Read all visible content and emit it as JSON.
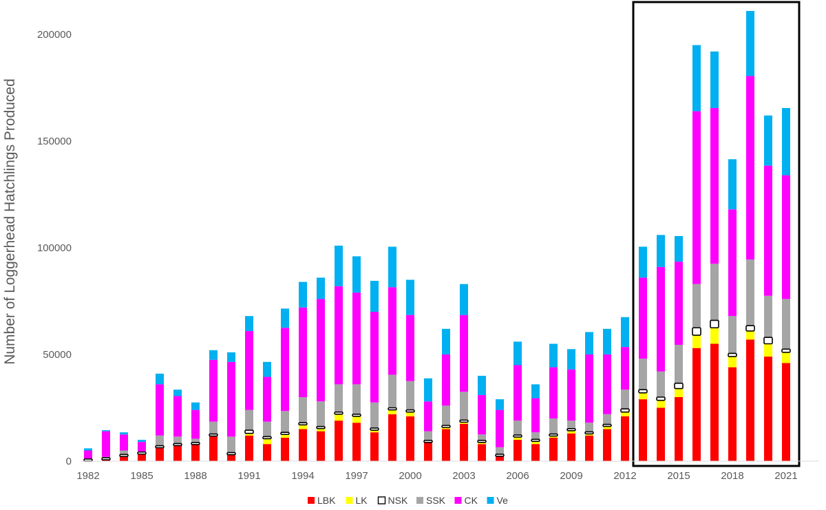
{
  "chart_data": {
    "type": "bar",
    "stacked": true,
    "title": "",
    "xlabel": "",
    "ylabel": "Number of Loggerhead Hatchlings Produced",
    "ylim": [
      0,
      215000
    ],
    "yticks": [
      0,
      50000,
      100000,
      150000,
      200000
    ],
    "ytick_labels": [
      "0",
      "50000",
      "100000",
      "150000",
      "200000"
    ],
    "xticks": [
      "1982",
      "1985",
      "1988",
      "1991",
      "1994",
      "1997",
      "2000",
      "2003",
      "2006",
      "2009",
      "2012",
      "2015",
      "2018",
      "2021"
    ],
    "grid": false,
    "legend_position": "bottom",
    "highlight_box": {
      "from": "2013",
      "to": "2021"
    },
    "categories": [
      "1982",
      "1983",
      "1984",
      "1985",
      "1986",
      "1987",
      "1988",
      "1989",
      "1990",
      "1991",
      "1992",
      "1993",
      "1994",
      "1995",
      "1996",
      "1997",
      "1998",
      "1999",
      "2000",
      "2001",
      "2002",
      "2003",
      "2004",
      "2005",
      "2006",
      "2007",
      "2008",
      "2009",
      "2010",
      "2011",
      "2012",
      "2013",
      "2014",
      "2015",
      "2016",
      "2017",
      "2018",
      "2019",
      "2020",
      "2021"
    ],
    "series": [
      {
        "name": "LBK",
        "color": "#ff0000",
        "values": [
          500,
          1000,
          2500,
          3500,
          6500,
          7500,
          8000,
          12000,
          3000,
          12000,
          8000,
          11000,
          15000,
          14000,
          19000,
          18000,
          13500,
          22000,
          21000,
          9000,
          15000,
          17500,
          8000,
          2500,
          10000,
          8000,
          11000,
          13000,
          12000,
          15000,
          21000,
          29000,
          25000,
          30000,
          53000,
          55000,
          44000,
          57000,
          49000,
          46000
        ]
      },
      {
        "name": "LK",
        "color": "#ffff00",
        "values": [
          0,
          0,
          0,
          0,
          0,
          0,
          0,
          0,
          0,
          1000,
          2500,
          1500,
          2000,
          1500,
          3000,
          3000,
          1000,
          2000,
          2000,
          0,
          1000,
          1000,
          1000,
          0,
          1500,
          1500,
          1000,
          1500,
          1000,
          1500,
          2000,
          3000,
          3500,
          4000,
          6000,
          7500,
          5000,
          4000,
          6000,
          5000
        ]
      },
      {
        "name": "NSK",
        "color": "#ffffff",
        "values": [
          0,
          200,
          300,
          500,
          500,
          500,
          500,
          500,
          1000,
          1500,
          1000,
          1000,
          1000,
          500,
          1000,
          1000,
          1000,
          1000,
          1000,
          500,
          500,
          500,
          500,
          500,
          500,
          500,
          500,
          500,
          500,
          500,
          1500,
          1500,
          1500,
          2500,
          3500,
          3500,
          1500,
          2500,
          3000,
          1500
        ]
      },
      {
        "name": "SSK",
        "color": "#a5a5a5",
        "values": [
          500,
          800,
          2200,
          500,
          5000,
          3500,
          2000,
          6000,
          7500,
          9500,
          7000,
          10000,
          12000,
          12000,
          13000,
          14000,
          12000,
          15500,
          13500,
          4500,
          9500,
          13500,
          3000,
          3500,
          7000,
          3500,
          7500,
          4000,
          4500,
          5000,
          9000,
          14500,
          12000,
          18000,
          20500,
          26500,
          17500,
          31000,
          19500,
          23500
        ]
      },
      {
        "name": "CK",
        "color": "#ff00ff",
        "values": [
          4000,
          12000,
          7500,
          4500,
          24000,
          19000,
          13500,
          29000,
          35000,
          37000,
          21000,
          39000,
          42000,
          48000,
          46000,
          43000,
          42500,
          41000,
          31000,
          14000,
          24000,
          36000,
          18500,
          17500,
          26000,
          16000,
          24000,
          24000,
          32000,
          28000,
          20000,
          38000,
          49000,
          39000,
          81000,
          73000,
          50000,
          86000,
          61000,
          58000
        ]
      },
      {
        "name": "Ve",
        "color": "#00b0f0",
        "values": [
          1000,
          500,
          1000,
          1000,
          5000,
          3000,
          3500,
          4500,
          4500,
          7000,
          7000,
          9000,
          12000,
          10000,
          19000,
          17000,
          14500,
          19000,
          16500,
          10800,
          12000,
          14500,
          9000,
          5000,
          11000,
          6500,
          11000,
          9500,
          10500,
          12000,
          14000,
          14500,
          15000,
          12000,
          31000,
          26500,
          23500,
          30500,
          23500,
          31500
        ]
      }
    ]
  }
}
